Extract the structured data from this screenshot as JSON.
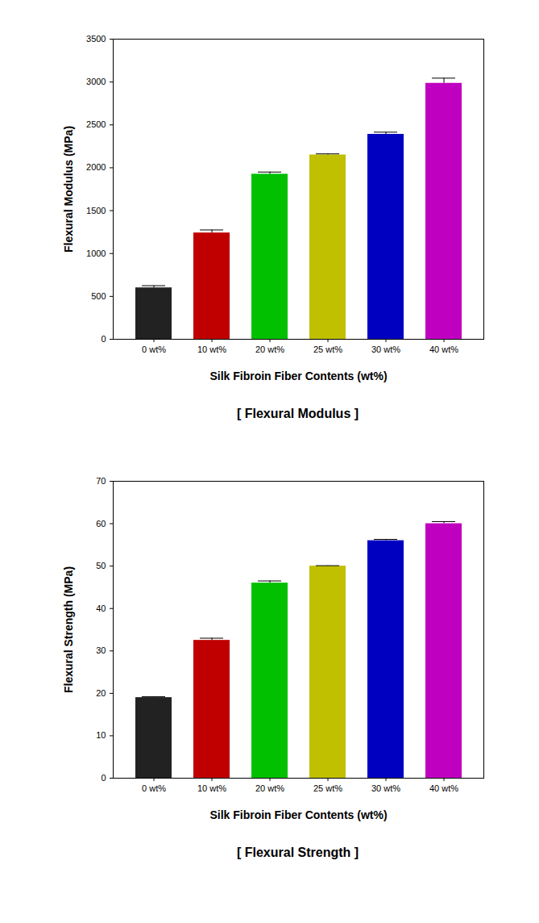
{
  "chart_data": [
    {
      "type": "bar",
      "caption": "[ Flexural Modulus ]",
      "xlabel": "Silk Fibroin Fiber Contents (wt%)",
      "ylabel": "Flexural Modulus (MPa)",
      "categories": [
        "0 wt%",
        "10 wt%",
        "20 wt%",
        "25 wt%",
        "30 wt%",
        "40 wt%"
      ],
      "values": [
        600,
        1240,
        1925,
        2150,
        2390,
        2985
      ],
      "errors": [
        25,
        35,
        25,
        12,
        25,
        60
      ],
      "colors": [
        "#222222",
        "#c00000",
        "#00c000",
        "#c0c000",
        "#0000c0",
        "#c000c0"
      ],
      "ylim": [
        0,
        3500
      ],
      "yticks": [
        0,
        500,
        1000,
        1500,
        2000,
        2500,
        3000,
        3500
      ],
      "grid": false
    },
    {
      "type": "bar",
      "caption": "[ Flexural Strength ]",
      "xlabel": "Silk Fibroin Fiber Contents (wt%)",
      "ylabel": "Flexural Strength (MPa)",
      "categories": [
        "0 wt%",
        "10 wt%",
        "20 wt%",
        "25 wt%",
        "30 wt%",
        "40 wt%"
      ],
      "values": [
        19,
        32.5,
        46,
        50,
        56,
        60
      ],
      "errors": [
        0.2,
        0.5,
        0.5,
        0.1,
        0.3,
        0.5
      ],
      "colors": [
        "#222222",
        "#c00000",
        "#00c000",
        "#c0c000",
        "#0000c0",
        "#c000c0"
      ],
      "ylim": [
        0,
        70
      ],
      "yticks": [
        0,
        10,
        20,
        30,
        40,
        50,
        60,
        70
      ],
      "grid": false
    }
  ]
}
